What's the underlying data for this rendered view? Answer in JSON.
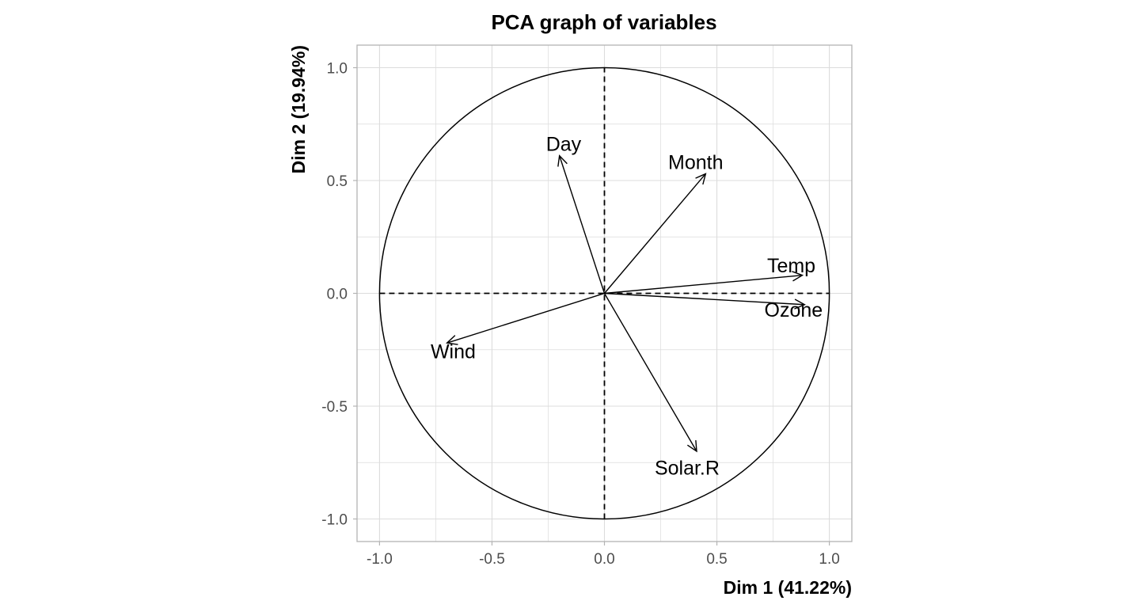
{
  "chart_data": {
    "type": "scatter",
    "subtype": "pca-correlation-circle",
    "title": "PCA graph of variables",
    "xlabel": "Dim 1 (41.22%)",
    "ylabel": "Dim 2 (19.94%)",
    "xlim": [
      -1.1,
      1.1
    ],
    "ylim": [
      -1.1,
      1.1
    ],
    "x_ticks": [
      -1.0,
      -0.5,
      0.0,
      0.5,
      1.0
    ],
    "y_ticks": [
      -1.0,
      -0.5,
      0.0,
      0.5,
      1.0
    ],
    "x_tick_labels": [
      "-1.0",
      "-0.5",
      "0.0",
      "0.5",
      "1.0"
    ],
    "y_tick_labels": [
      "-1.0",
      "-0.5",
      "0.0",
      "0.5",
      "1.0"
    ],
    "grid": true,
    "unit_circle": true,
    "reference_lines": [
      0,
      0
    ],
    "variables": [
      {
        "name": "Ozone",
        "x": 0.89,
        "y": -0.05
      },
      {
        "name": "Solar.R",
        "x": 0.41,
        "y": -0.7
      },
      {
        "name": "Wind",
        "x": -0.7,
        "y": -0.22
      },
      {
        "name": "Temp",
        "x": 0.88,
        "y": 0.08
      },
      {
        "name": "Month",
        "x": 0.45,
        "y": 0.53
      },
      {
        "name": "Day",
        "x": -0.2,
        "y": 0.61
      }
    ],
    "colors": {
      "background": "#ffffff",
      "grid": "#dcdcdc",
      "panel_border": "#b3b3b3",
      "ink": "#000000",
      "tick_text": "#4d4d4d"
    }
  }
}
